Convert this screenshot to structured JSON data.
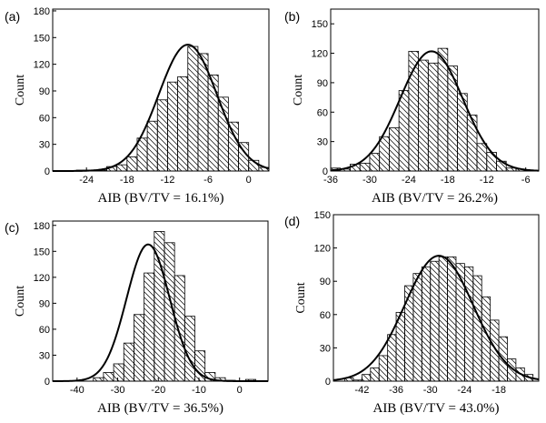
{
  "chart_data": [
    {
      "type": "bar",
      "panel": "(a)",
      "xlabel": "AIB (BV/TV = 16.1%)",
      "ylabel": "Count",
      "xlim": [
        -29,
        3
      ],
      "ylim": [
        0,
        182
      ],
      "xticks": [
        -24,
        -18,
        -12,
        -6,
        0
      ],
      "yticks": [
        0,
        30,
        60,
        90,
        120,
        150,
        180
      ],
      "bin_width": 1.5,
      "bins_start": [
        -28.5,
        -27,
        -25.5,
        -24,
        -22.5,
        -21,
        -19.5,
        -18,
        -16.5,
        -15,
        -13.5,
        -12,
        -10.5,
        -9,
        -7.5,
        -6,
        -4.5,
        -3,
        -1.5,
        0,
        1.5
      ],
      "counts": [
        0,
        0,
        1,
        1,
        1,
        5,
        7,
        16,
        37,
        56,
        80,
        100,
        106,
        140,
        132,
        108,
        83,
        55,
        32,
        12,
        4
      ],
      "fit_curve": {
        "type": "gaussian",
        "mean": -9,
        "sd": 4.3,
        "peak": 142
      }
    },
    {
      "type": "bar",
      "panel": "(b)",
      "xlabel": "AIB (BV/TV = 26.2%)",
      "ylabel": "Count",
      "xlim": [
        -36,
        -4
      ],
      "ylim": [
        0,
        165
      ],
      "xticks": [
        -36,
        -30,
        -24,
        -18,
        -12,
        -6
      ],
      "yticks": [
        0,
        30,
        60,
        90,
        120,
        150
      ],
      "bin_width": 1.5,
      "bins_start": [
        -36,
        -34.5,
        -33,
        -31.5,
        -30,
        -28.5,
        -27,
        -25.5,
        -24,
        -22.5,
        -21,
        -19.5,
        -18,
        -16.5,
        -15,
        -13.5,
        -12,
        -10.5,
        -9,
        -7.5
      ],
      "counts": [
        3,
        2,
        7,
        8,
        18,
        35,
        44,
        82,
        122,
        113,
        110,
        125,
        107,
        79,
        57,
        28,
        19,
        10,
        3,
        2
      ],
      "fit_curve": {
        "type": "gaussian",
        "mean": -20.5,
        "sd": 4.8,
        "peak": 122
      }
    },
    {
      "type": "bar",
      "panel": "(c)",
      "xlabel": "AIB (BV/TV = 36.5%)",
      "ylabel": "Count",
      "xlim": [
        -46,
        7
      ],
      "ylim": [
        0,
        185
      ],
      "xticks": [
        -40,
        -30,
        -20,
        -10,
        0
      ],
      "yticks": [
        0,
        30,
        60,
        90,
        120,
        150,
        180
      ],
      "bin_width": 2.5,
      "bins_start": [
        -43.5,
        -41,
        -38.5,
        -36,
        -33.5,
        -31,
        -28.5,
        -26,
        -23.5,
        -21,
        -18.5,
        -16,
        -13.5,
        -11,
        -8.5,
        -6,
        -3.5,
        -1,
        1.5
      ],
      "counts": [
        0,
        0,
        0,
        4,
        10,
        20,
        44,
        77,
        125,
        173,
        160,
        122,
        75,
        35,
        10,
        4,
        1,
        0,
        2
      ],
      "fit_curve": {
        "type": "gaussian",
        "mean": -22.5,
        "sd": 5.3,
        "peak": 158
      }
    },
    {
      "type": "bar",
      "panel": "(d)",
      "xlabel": "AIB (BV/TV = 43.0%)",
      "ylabel": "Count",
      "xlim": [
        -47,
        -11
      ],
      "ylim": [
        0,
        150
      ],
      "xticks": [
        -42,
        -36,
        -30,
        -24,
        -18
      ],
      "yticks": [
        0,
        30,
        60,
        90,
        120,
        150
      ],
      "bin_width": 1.5,
      "bins_start": [
        -46.5,
        -45,
        -43.5,
        -42,
        -40.5,
        -39,
        -37.5,
        -36,
        -34.5,
        -33,
        -31.5,
        -30,
        -28.5,
        -27,
        -25.5,
        -24,
        -22.5,
        -21,
        -19.5,
        -18,
        -16.5,
        -15,
        -13.5
      ],
      "counts": [
        0,
        3,
        1,
        6,
        12,
        23,
        42,
        62,
        86,
        97,
        103,
        108,
        112,
        112,
        106,
        103,
        95,
        76,
        55,
        40,
        20,
        12,
        6
      ],
      "fit_curve": {
        "type": "gaussian",
        "mean": -28.5,
        "sd": 6.0,
        "peak": 113
      }
    }
  ]
}
